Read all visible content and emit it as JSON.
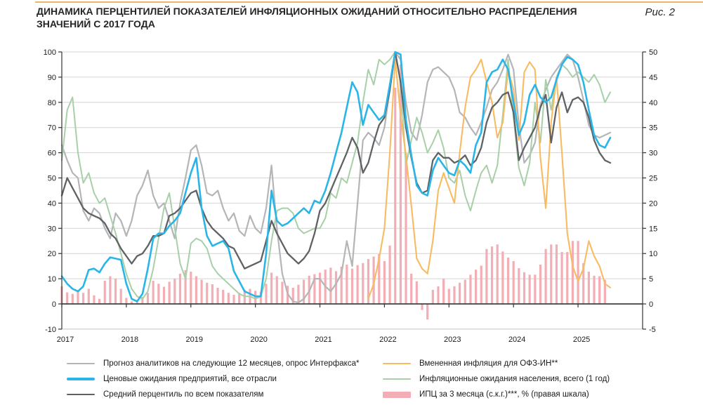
{
  "page": {
    "title": "ДИНАМИКА ПЕРЦЕНТИЛЕЙ ПОКАЗАТЕЛЕЙ ИНФЛЯЦИОННЫХ ОЖИДАНИЙ ОТНОСИТЕЛЬНО РАСПРЕДЕЛЕНИЯ ЗНАЧЕНИЙ С 2017 ГОДА",
    "figure_label": "Рис. 2"
  },
  "colors": {
    "accent_rule": "#e9b768",
    "grid": "#d4d4d4",
    "zero_line": "#404040",
    "spine": "#333333",
    "axis_text": "#1a1a1a"
  },
  "legend": {
    "items": [
      {
        "key": "analysts",
        "label": "Прогноз аналитиков на следующие 12 месяцев, опрос Интерфакса*"
      },
      {
        "key": "enterprises",
        "label": "Ценовые ожидания предприятий, все отрасли"
      },
      {
        "key": "average",
        "label": "Средний перцентиль по всем показателям"
      },
      {
        "key": "ofz",
        "label": "Вмененная инфляция для ОФЗ-ИН**"
      },
      {
        "key": "population",
        "label": "Инфляционные ожидания населения, всего (1 год)"
      },
      {
        "key": "cpi",
        "label": "ИПЦ за 3 месяца (с.к.г.)***, % (правая шкала)"
      }
    ]
  },
  "chart_data": {
    "type": "line+bar",
    "title": "ДИНАМИКА ПЕРЦЕНТИЛЕЙ ПОКАЗАТЕЛЕЙ ИНФЛЯЦИОННЫХ ОЖИДАНИЙ ОТНОСИТЕЛЬНО РАСПРЕДЕЛЕНИЯ ЗНАЧЕНИЙ С 2017 ГОДА",
    "x_axis": {
      "start": "2017-01",
      "end": "2026-01",
      "tick_labels": [
        "2017",
        "2018",
        "2019",
        "2020",
        "2021",
        "2022",
        "2023",
        "2024",
        "2025"
      ]
    },
    "y_left": {
      "min": -10,
      "max": 100,
      "step": 10,
      "ticks": [
        100,
        90,
        80,
        70,
        60,
        50,
        40,
        30,
        20,
        10,
        0,
        -10
      ]
    },
    "y_right": {
      "min": -5,
      "max": 50,
      "step": 5,
      "ticks": [
        50,
        45,
        40,
        35,
        30,
        25,
        20,
        15,
        10,
        5,
        0,
        -5
      ]
    },
    "grid": true,
    "legend_position": "bottom",
    "series": [
      {
        "key": "analysts",
        "name": "Прогноз аналитиков на следующие 12 месяцев, опрос Интерфакса*",
        "color": "#b3b5b7",
        "axis": "left",
        "start": "2017-01",
        "start_month_index": 0,
        "values": [
          63,
          57,
          52,
          50,
          37,
          33,
          38,
          36,
          30,
          26,
          36,
          33,
          27,
          33,
          43,
          47,
          53,
          43,
          38,
          40,
          33,
          26,
          40,
          50,
          61,
          63,
          55,
          44,
          43,
          45,
          38,
          33,
          36,
          29,
          27,
          35,
          30,
          28,
          38,
          55,
          30,
          12,
          4,
          1,
          0.5,
          2,
          5,
          10,
          10,
          7,
          5,
          8,
          12,
          25,
          15,
          40,
          65,
          68,
          66,
          63,
          70,
          85,
          100,
          97,
          80,
          68,
          65,
          75,
          88,
          93,
          94,
          92,
          90,
          85,
          76,
          74,
          70,
          67,
          72,
          78,
          85,
          88,
          93,
          99,
          93,
          71,
          56,
          59,
          64,
          79,
          85,
          90,
          93,
          96,
          99,
          97,
          90,
          81,
          71,
          67,
          66,
          67,
          68
        ]
      },
      {
        "key": "population",
        "name": "Инфляционные ожидания населения, всего (1 год)",
        "color": "#a7d0a9",
        "axis": "left",
        "start": "2017-01",
        "start_month_index": 0,
        "values": [
          57,
          77,
          82,
          60,
          48,
          52,
          44,
          40,
          42,
          35,
          28,
          20,
          12,
          6,
          3,
          2,
          5,
          14,
          26,
          38,
          44,
          30,
          16,
          10,
          24,
          26,
          25,
          22,
          15,
          12,
          10,
          8,
          6,
          4,
          3,
          3,
          2,
          3,
          10,
          25,
          37,
          38,
          38,
          36,
          30,
          28,
          29,
          30,
          30,
          34,
          44,
          42,
          50,
          48,
          56,
          64,
          80,
          93,
          87,
          97,
          95,
          97,
          100,
          88,
          55,
          65,
          74,
          68,
          60,
          64,
          69,
          62,
          50,
          48,
          53,
          43,
          37,
          45,
          52,
          55,
          48,
          55,
          75,
          97,
          74,
          54,
          47,
          56,
          80,
          64,
          89,
          77,
          90,
          95,
          93,
          90,
          92,
          90,
          88,
          91,
          87,
          80,
          84
        ]
      },
      {
        "key": "ofz",
        "name": "Вмененная инфляция для ОФЗ-ИН**",
        "color": "#f7bb62",
        "axis": "left",
        "start": "2021-10",
        "start_month_index": 57,
        "values": [
          2,
          8,
          18,
          30,
          60,
          97,
          75,
          59,
          39,
          18,
          14,
          12,
          25,
          45,
          52,
          46,
          40,
          60,
          78,
          90,
          93,
          97,
          88,
          80,
          66,
          72,
          93,
          85,
          65,
          92,
          96,
          93,
          58,
          38,
          72,
          90,
          60,
          28,
          15,
          9,
          14,
          25,
          19,
          15,
          8,
          6.5
        ]
      },
      {
        "key": "average",
        "name": "Средний перцентиль по всем показателям",
        "color": "#5f6265",
        "axis": "left",
        "start": "2017-01",
        "start_month_index": 0,
        "values": [
          43,
          50,
          46,
          42,
          38,
          36,
          35,
          34,
          32,
          28,
          26,
          22,
          19,
          16,
          19,
          20,
          23,
          27,
          27,
          28,
          35,
          36,
          38,
          41,
          44,
          45,
          38,
          33,
          30,
          28,
          26,
          23,
          22,
          18,
          14,
          15,
          16,
          17,
          25,
          33,
          28,
          24,
          20,
          18,
          16,
          18,
          21,
          28,
          37,
          40,
          45,
          50,
          55,
          60,
          66,
          62,
          52,
          56,
          64,
          71,
          74,
          85,
          100,
          88,
          70,
          58,
          48,
          44,
          45,
          57,
          60,
          58,
          58,
          56,
          57,
          59,
          55,
          57,
          62,
          72,
          78,
          80,
          83,
          84,
          76,
          57,
          62,
          66,
          70,
          78,
          83,
          64,
          78,
          84,
          76,
          81,
          82,
          80,
          74,
          65,
          60,
          57,
          56
        ]
      },
      {
        "key": "enterprises",
        "name": "Ценовые ожидания предприятий, все отрасли",
        "color": "#29b5e8",
        "axis": "left",
        "start": "2017-01",
        "start_month_index": 0,
        "values": [
          11,
          8,
          6,
          5,
          7,
          13.5,
          14,
          12.5,
          16,
          18.5,
          18,
          17.5,
          8,
          2,
          1,
          4,
          14,
          26,
          28,
          28,
          31,
          33,
          36,
          44,
          52,
          58,
          38,
          27,
          23,
          24,
          25,
          22,
          13,
          9,
          5,
          4,
          3,
          3,
          20,
          45,
          33,
          31,
          32,
          34,
          36,
          38,
          36,
          41,
          40,
          45,
          52,
          60,
          68,
          78,
          88,
          84,
          71,
          79,
          76,
          73,
          75,
          87,
          100,
          99,
          73,
          59,
          47,
          44,
          43,
          53,
          58,
          55,
          52,
          51,
          57,
          55,
          52,
          63,
          68,
          88,
          92,
          93,
          97,
          93,
          80,
          67,
          72,
          83,
          87,
          82,
          80,
          82,
          89,
          95,
          98,
          97,
          95,
          88,
          77,
          67,
          63,
          62,
          66
        ]
      }
    ],
    "bars": {
      "key": "cpi",
      "name": "ИПЦ за 3 месяца (с.к.г.)***, % (правая шкала)",
      "color": "#f3aeb5",
      "axis": "right",
      "start": "2017-01",
      "start_month_index": 0,
      "values": [
        3.5,
        2.3,
        2.0,
        2.6,
        2.2,
        3.0,
        1.7,
        1.0,
        4.6,
        5.5,
        5.0,
        3.0,
        1.2,
        0.5,
        0.8,
        1.4,
        2.2,
        4.6,
        4.0,
        3.4,
        4.4,
        5.0,
        6.0,
        6.7,
        6.4,
        5.5,
        4.8,
        4.2,
        3.9,
        3.2,
        2.8,
        2.2,
        1.8,
        2.2,
        2.8,
        3.0,
        2.6,
        2.4,
        4.0,
        6.2,
        5.5,
        4.4,
        3.6,
        3.2,
        3.8,
        4.8,
        5.6,
        5.9,
        6.2,
        6.8,
        7.2,
        6.5,
        7.4,
        7.8,
        7.0,
        7.7,
        8.1,
        8.9,
        9.4,
        9.9,
        8.5,
        11.6,
        42.9,
        47.5,
        29.9,
        6.0,
        4.5,
        -1.2,
        -3.1,
        2.8,
        3.5,
        5.0,
        3.0,
        3.5,
        4.2,
        4.8,
        5.8,
        6.8,
        7.6,
        10.9,
        11.4,
        11.8,
        10.4,
        9.2,
        8.5,
        7.1,
        6.3,
        5.8,
        5.8,
        7.8,
        10.9,
        11.8,
        11.8,
        10.3,
        10.3,
        12.5,
        12.5,
        8.1,
        6.4,
        5.6,
        5.5,
        4.8
      ]
    }
  }
}
